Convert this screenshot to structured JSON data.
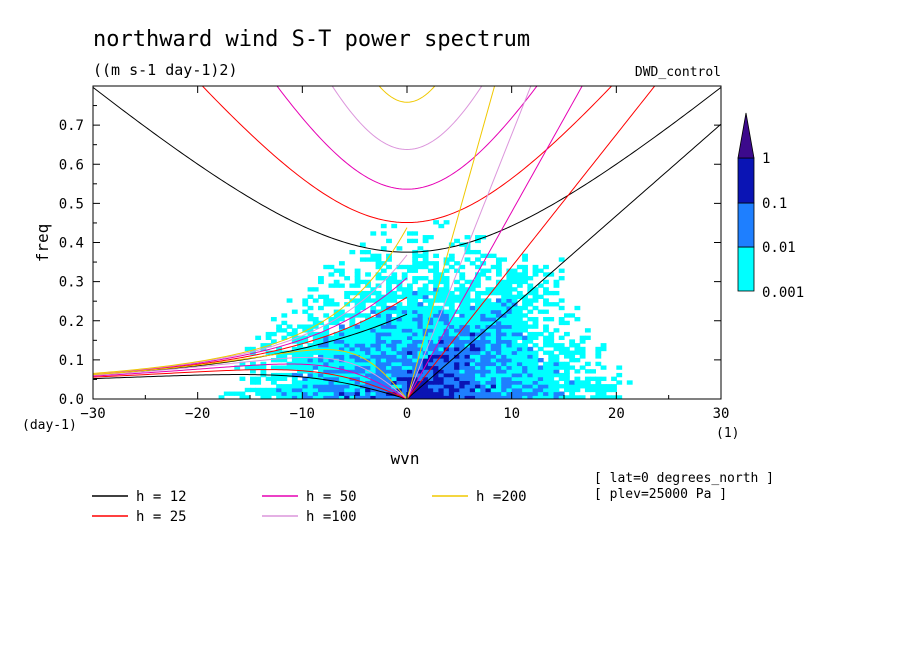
{
  "chart_data": {
    "type": "contour",
    "title": "northward wind S-T power spectrum",
    "subtitle": "((m s-1 day-1)2)",
    "dataset": "DWD_control",
    "xlabel": "wvn",
    "ylabel": "freq",
    "x_unit": "(1)",
    "y_unit": "(day-1)",
    "xlim": [
      -30,
      30
    ],
    "ylim": [
      0,
      0.8
    ],
    "xticks": [
      -30,
      -20,
      -10,
      0,
      10,
      20,
      30
    ],
    "yticks": [
      0.0,
      0.1,
      0.2,
      0.3,
      0.4,
      0.5,
      0.6,
      0.7
    ],
    "colorbar": {
      "levels": [
        "0.001",
        "0.01",
        "0.1",
        "1"
      ],
      "colors": [
        "#00ffff",
        "#1e7fff",
        "#0a14b4",
        "#3c0a8c"
      ]
    },
    "legend": [
      {
        "label": "h = 12",
        "color": "#000000"
      },
      {
        "label": "h = 25",
        "color": "#ff0000"
      },
      {
        "label": "h = 50",
        "color": "#e600b4"
      },
      {
        "label": "h =100",
        "color": "#dc96dc"
      },
      {
        "label": "h =200",
        "color": "#f0c800"
      }
    ],
    "annotations": [
      "[ lat=0 degrees_north ]",
      "[ plev=25000 Pa ]"
    ],
    "equivalent_depths_m": [
      12,
      25,
      50,
      100,
      200
    ]
  }
}
